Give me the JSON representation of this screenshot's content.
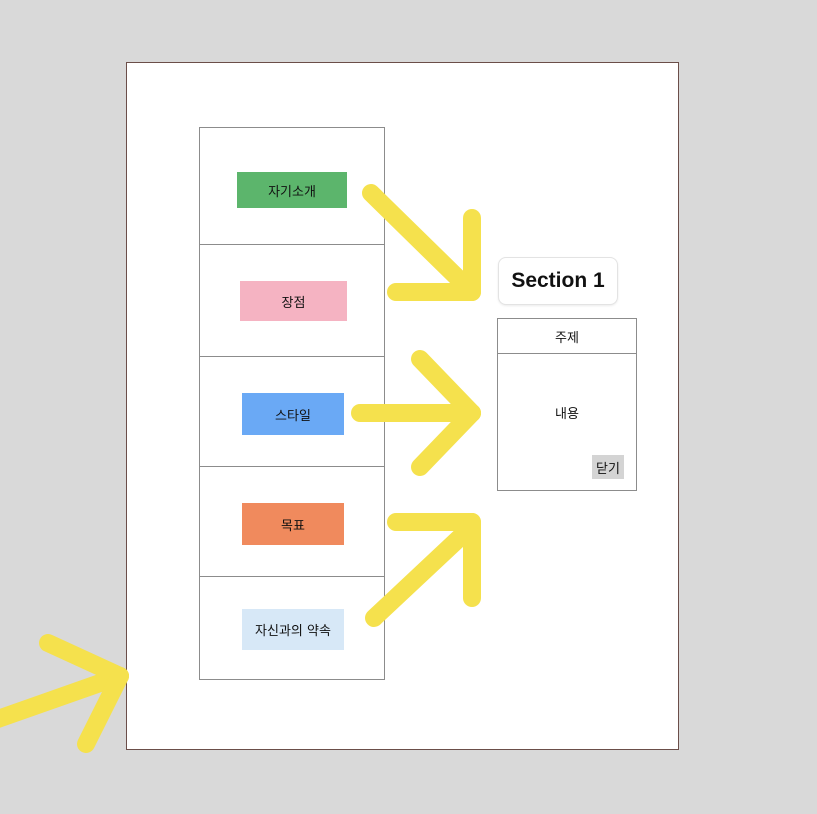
{
  "menu": {
    "items": [
      {
        "label": "자기소개",
        "color": "#5cb56c"
      },
      {
        "label": "장점",
        "color": "#f5b3c2"
      },
      {
        "label": "스타일",
        "color": "#6aa9f5"
      },
      {
        "label": "목표",
        "color": "#f08a5d"
      },
      {
        "label": "자신과의 약속",
        "color": "#d7e8f7"
      }
    ]
  },
  "section": {
    "title": "Section 1"
  },
  "modal": {
    "header": "주제",
    "body": "내용",
    "close_label": "닫기"
  },
  "colors": {
    "background": "#d9d9d9",
    "page": "#ffffff",
    "page_border": "#6b4e49",
    "arrow": "#f5e14d"
  }
}
